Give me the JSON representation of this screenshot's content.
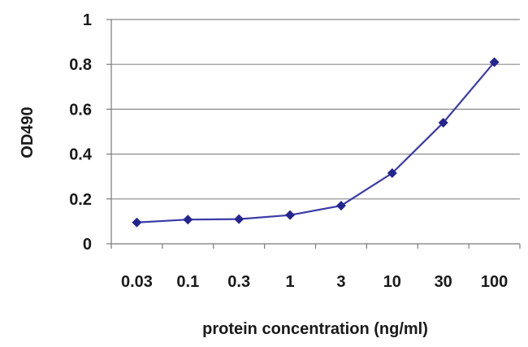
{
  "chart_data": {
    "type": "line",
    "title": "",
    "xlabel": "protein concentration (ng/ml)",
    "ylabel": "OD490",
    "categories": [
      "0.03",
      "0.1",
      "0.3",
      "1",
      "3",
      "10",
      "30",
      "100"
    ],
    "series": [
      {
        "values": [
          0.095,
          0.108,
          0.11,
          0.128,
          0.17,
          0.315,
          0.54,
          0.81
        ]
      }
    ],
    "ylim": [
      0,
      1
    ],
    "yticks": [
      "0",
      "0.2",
      "0.4",
      "0.6",
      "0.8",
      "1"
    ],
    "grid": true,
    "legend": "none",
    "line_color": "#3b3ba8",
    "marker_color": "#252590"
  }
}
